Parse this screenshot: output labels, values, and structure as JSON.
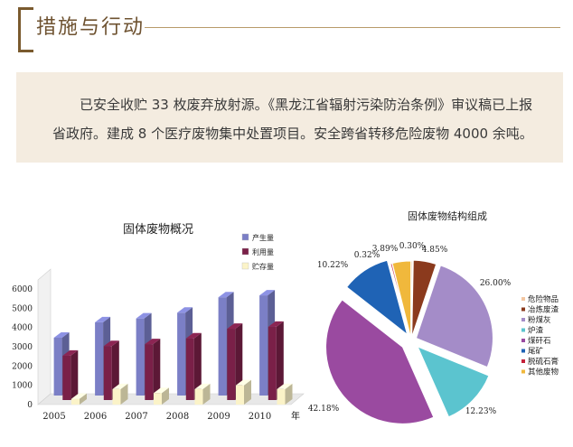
{
  "header": {
    "title": "措施与行动"
  },
  "summary": "已安全收贮 33 枚废弃放射源。《黑龙江省辐射污染防治条例》审议稿已上报省政府。建成 8 个医疗废物集中处置项目。安全跨省转移危险废物 4000 余吨。",
  "chart_data": [
    {
      "type": "bar",
      "title": "固体废物概况",
      "categories": [
        "2005",
        "2006",
        "2007",
        "2008",
        "2009",
        "2010"
      ],
      "xlabel": "年",
      "ylim": [
        0,
        6000
      ],
      "yticks": [
        "6000",
        "5000",
        "4000",
        "3000",
        "2000",
        "1000",
        "0"
      ],
      "series": [
        {
          "name": "产生量",
          "color": "#7b7fc6",
          "values": [
            3000,
            3800,
            4000,
            4300,
            5100,
            5200
          ]
        },
        {
          "name": "利用量",
          "color": "#7a2048",
          "values": [
            2300,
            2800,
            2900,
            3200,
            3700,
            3800
          ]
        },
        {
          "name": "贮存量",
          "color": "#fbf3c8",
          "values": [
            300,
            800,
            600,
            800,
            1000,
            800
          ]
        }
      ],
      "legend": "top-right"
    },
    {
      "type": "pie",
      "title": "固体废物结构组成",
      "unit": "%",
      "slices": [
        {
          "name": "危险物品",
          "value": 0.3,
          "label": "0.30%",
          "color": "#f3c6a1"
        },
        {
          "name": "冶炼废渣",
          "value": 4.85,
          "label": "4.85%",
          "color": "#8b3a1d"
        },
        {
          "name": "粉煤灰",
          "value": 26.0,
          "label": "26.00%",
          "color": "#a48cc8"
        },
        {
          "name": "炉渣",
          "value": 12.23,
          "label": "12.23%",
          "color": "#5bc4cf"
        },
        {
          "name": "煤矸石",
          "value": 42.18,
          "label": "42.18%",
          "color": "#9a4aa0"
        },
        {
          "name": "尾矿",
          "value": 10.22,
          "label": "10.22%",
          "color": "#1f63b5"
        },
        {
          "name": "脱硫石膏",
          "value": 0.32,
          "label": "0.32%",
          "color": "#c4203a"
        },
        {
          "name": "其他废物",
          "value": 3.89,
          "label": "3.89%",
          "color": "#f0b83c"
        }
      ],
      "legend": "right"
    }
  ]
}
